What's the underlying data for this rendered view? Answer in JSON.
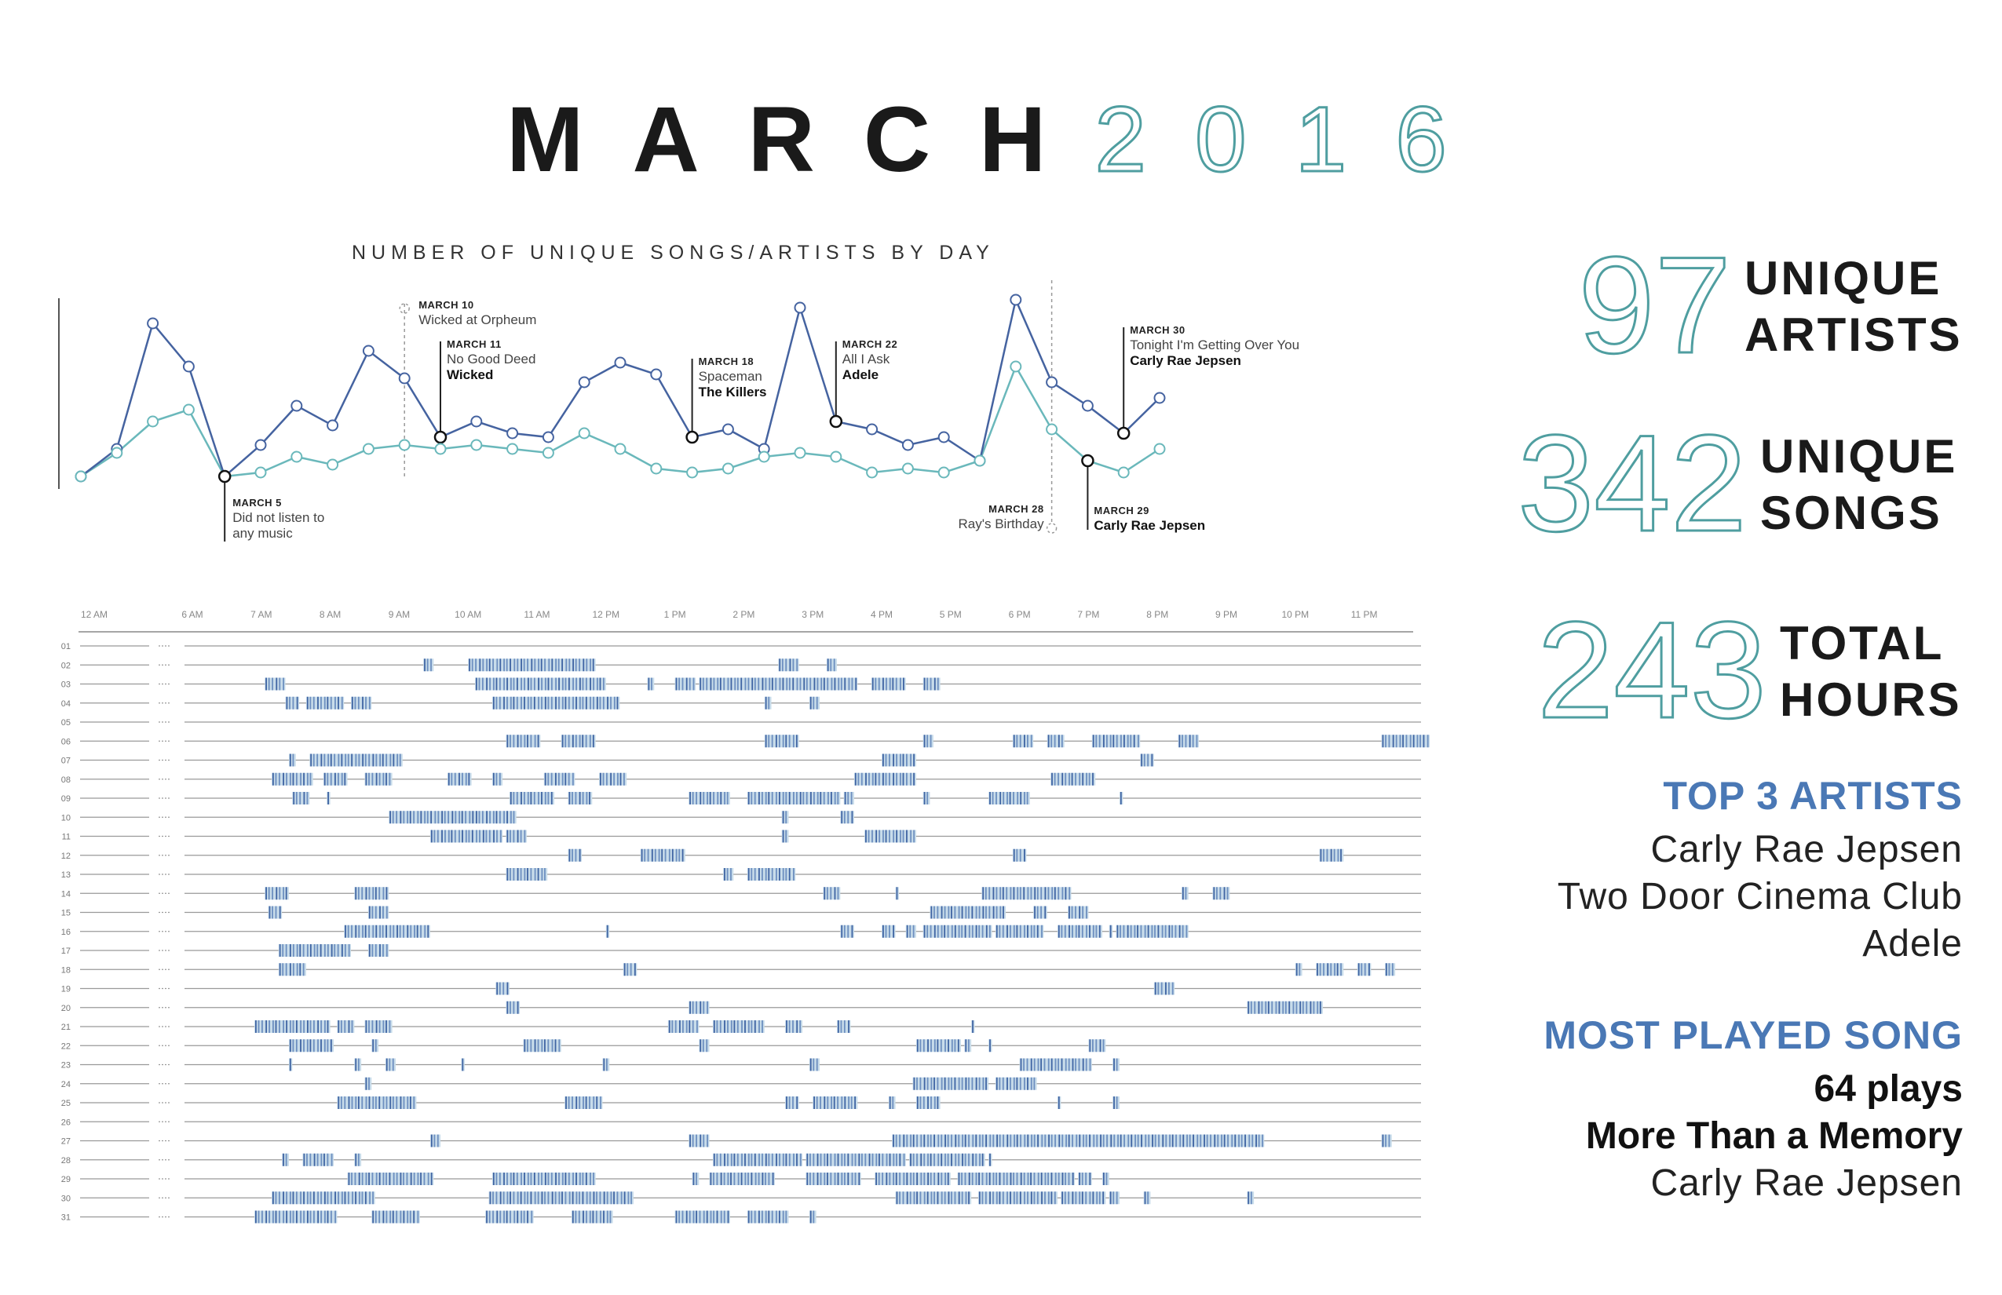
{
  "header": {
    "month": "MARCH",
    "year": "2016"
  },
  "chart_data": {
    "type": "line",
    "title": "NUMBER OF UNIQUE SONGS/ARTISTS BY DAY",
    "x": [
      1,
      2,
      3,
      4,
      5,
      6,
      7,
      8,
      9,
      10,
      11,
      12,
      13,
      14,
      15,
      16,
      17,
      18,
      19,
      20,
      21,
      22,
      23,
      24,
      25,
      26,
      27,
      28,
      29,
      30,
      31
    ],
    "series": [
      {
        "name": "",
        "color": "#4563a0",
        "values": [
          0,
          7,
          39,
          28,
          0,
          8,
          18,
          13,
          32,
          25,
          10,
          14,
          11,
          10,
          24,
          29,
          26,
          10,
          12,
          7,
          43,
          14,
          12,
          8,
          10,
          4,
          45,
          24,
          18,
          11,
          20
        ]
      },
      {
        "name": "",
        "color": "#6ab8bb",
        "values": [
          0,
          6,
          14,
          17,
          0,
          1,
          5,
          3,
          7,
          8,
          7,
          8,
          7,
          6,
          11,
          7,
          2,
          1,
          2,
          5,
          6,
          5,
          1,
          2,
          1,
          4,
          28,
          12,
          4,
          1,
          7
        ]
      }
    ],
    "annotations": [
      {
        "day": 5,
        "date": "MARCH 5",
        "lines": [
          "Did not listen to",
          "any music"
        ],
        "bold": ""
      },
      {
        "day": 10,
        "date": "MARCH 10",
        "lines": [
          "Wicked at Orpheum"
        ],
        "bold": ""
      },
      {
        "day": 11,
        "date": "MARCH 11",
        "lines": [
          "No Good Deed"
        ],
        "bold": "Wicked"
      },
      {
        "day": 18,
        "date": "MARCH 18",
        "lines": [
          "Spaceman"
        ],
        "bold": "The Killers"
      },
      {
        "day": 22,
        "date": "MARCH 22",
        "lines": [
          "All I Ask"
        ],
        "bold": "Adele"
      },
      {
        "day": 28,
        "date": "MARCH 28",
        "lines": [
          "Ray's Birthday"
        ],
        "bold": ""
      },
      {
        "day": 29,
        "date": "MARCH 29",
        "lines": [],
        "bold": "Carly Rae Jepsen"
      },
      {
        "day": 30,
        "date": "MARCH 30",
        "lines": [
          "Tonight I'm Getting Over You"
        ],
        "bold": "Carly Rae Jepsen"
      }
    ]
  },
  "timeline": {
    "hours": [
      "12 AM",
      "6 AM",
      "7 AM",
      "8 AM",
      "9 AM",
      "10 AM",
      "11 AM",
      "12 PM",
      "1 PM",
      "2 PM",
      "3 PM",
      "4 PM",
      "5 PM",
      "6 PM",
      "7 PM",
      "8 PM",
      "9 PM",
      "10 PM",
      "11 PM"
    ],
    "days": [
      "01",
      "02",
      "03",
      "04",
      "05",
      "06",
      "07",
      "08",
      "09",
      "10",
      "11",
      "12",
      "13",
      "14",
      "15",
      "16",
      "17",
      "18",
      "19",
      "20",
      "21",
      "22",
      "23",
      "24",
      "25",
      "26",
      "27",
      "28",
      "29",
      "30",
      "31"
    ],
    "sessions": [
      [],
      [
        [
          9.35,
          9.5
        ],
        [
          10.0,
          11.85
        ],
        [
          14.5,
          14.8
        ],
        [
          15.2,
          15.35
        ]
      ],
      [
        [
          7.05,
          7.35
        ],
        [
          10.1,
          12.0
        ],
        [
          12.6,
          12.7
        ],
        [
          13.0,
          13.3
        ],
        [
          13.35,
          15.65
        ],
        [
          15.85,
          16.35
        ],
        [
          16.6,
          16.85
        ]
      ],
      [
        [
          7.35,
          7.55
        ],
        [
          7.65,
          8.2
        ],
        [
          8.3,
          8.6
        ],
        [
          10.35,
          12.2
        ],
        [
          14.3,
          14.4
        ],
        [
          14.95,
          15.1
        ]
      ],
      [],
      [
        [
          10.55,
          11.05
        ],
        [
          11.35,
          11.85
        ],
        [
          14.3,
          14.8
        ],
        [
          16.6,
          16.75
        ],
        [
          17.9,
          18.2
        ],
        [
          18.4,
          18.65
        ],
        [
          19.05,
          19.75
        ],
        [
          20.3,
          20.6
        ],
        [
          23.25,
          23.95
        ]
      ],
      [
        [
          7.4,
          7.5
        ],
        [
          7.7,
          9.05
        ],
        [
          16.0,
          16.5
        ],
        [
          19.75,
          19.95
        ]
      ],
      [
        [
          7.15,
          7.75
        ],
        [
          7.9,
          8.25
        ],
        [
          8.5,
          8.9
        ],
        [
          9.7,
          10.05
        ],
        [
          10.35,
          10.5
        ],
        [
          11.1,
          11.55
        ],
        [
          11.9,
          12.3
        ],
        [
          15.6,
          16.0
        ],
        [
          16.0,
          16.5
        ],
        [
          18.45,
          19.1
        ]
      ],
      [
        [
          7.45,
          7.7
        ],
        [
          7.95,
          8.0
        ],
        [
          10.6,
          11.25
        ],
        [
          11.45,
          11.8
        ],
        [
          13.2,
          13.8
        ],
        [
          14.05,
          15.4
        ],
        [
          15.45,
          15.6
        ],
        [
          16.6,
          16.7
        ],
        [
          17.55,
          18.15
        ],
        [
          19.45,
          19.5
        ]
      ],
      [
        [
          8.85,
          10.1
        ],
        [
          10.1,
          10.7
        ],
        [
          14.55,
          14.65
        ],
        [
          15.4,
          15.6
        ]
      ],
      [
        [
          9.45,
          10.5
        ],
        [
          10.55,
          10.85
        ],
        [
          14.55,
          14.65
        ],
        [
          15.75,
          16.5
        ]
      ],
      [
        [
          11.45,
          11.65
        ],
        [
          12.5,
          13.15
        ],
        [
          17.9,
          18.1
        ],
        [
          22.35,
          22.7
        ]
      ],
      [
        [
          10.55,
          11.15
        ],
        [
          13.7,
          13.85
        ],
        [
          14.05,
          14.75
        ]
      ],
      [
        [
          7.05,
          7.4
        ],
        [
          8.35,
          8.85
        ],
        [
          15.15,
          15.4
        ],
        [
          16.2,
          16.25
        ],
        [
          17.45,
          18.75
        ],
        [
          20.35,
          20.45
        ],
        [
          20.8,
          21.05
        ]
      ],
      [
        [
          7.1,
          7.3
        ],
        [
          8.55,
          8.85
        ],
        [
          16.7,
          17.8
        ],
        [
          18.2,
          18.4
        ],
        [
          18.7,
          19.0
        ]
      ],
      [
        [
          8.2,
          9.45
        ],
        [
          12.0,
          12.05
        ],
        [
          15.4,
          15.6
        ],
        [
          16.0,
          16.2
        ],
        [
          16.35,
          16.5
        ],
        [
          16.6,
          17.6
        ],
        [
          17.65,
          18.35
        ],
        [
          18.55,
          19.2
        ],
        [
          19.3,
          19.35
        ],
        [
          19.4,
          20.45
        ]
      ],
      [
        [
          7.25,
          8.3
        ],
        [
          8.55,
          8.85
        ]
      ],
      [
        [
          7.25,
          7.65
        ],
        [
          12.25,
          12.45
        ],
        [
          22.0,
          22.1
        ],
        [
          22.3,
          22.7
        ],
        [
          22.9,
          23.1
        ],
        [
          23.3,
          23.45
        ]
      ],
      [
        [
          10.4,
          10.6
        ],
        [
          19.95,
          20.25
        ]
      ],
      [
        [
          10.55,
          10.75
        ],
        [
          13.2,
          13.5
        ],
        [
          21.3,
          22.4
        ]
      ],
      [
        [
          6.9,
          8.0
        ],
        [
          8.1,
          8.35
        ],
        [
          8.5,
          8.9
        ],
        [
          12.9,
          13.35
        ],
        [
          13.55,
          14.3
        ],
        [
          14.6,
          14.85
        ],
        [
          15.35,
          15.55
        ],
        [
          17.3,
          17.35
        ]
      ],
      [
        [
          7.4,
          8.05
        ],
        [
          8.6,
          8.7
        ],
        [
          10.8,
          11.35
        ],
        [
          13.35,
          13.5
        ],
        [
          16.5,
          17.15
        ],
        [
          17.2,
          17.3
        ],
        [
          17.55,
          17.6
        ],
        [
          19.0,
          19.25
        ]
      ],
      [
        [
          7.4,
          7.45
        ],
        [
          8.35,
          8.45
        ],
        [
          8.8,
          8.95
        ],
        [
          9.9,
          9.95
        ],
        [
          11.95,
          12.05
        ],
        [
          14.95,
          15.1
        ],
        [
          18.0,
          19.05
        ],
        [
          19.35,
          19.45
        ]
      ],
      [
        [
          8.5,
          8.6
        ],
        [
          16.45,
          17.55
        ],
        [
          17.65,
          18.25
        ]
      ],
      [
        [
          8.1,
          9.25
        ],
        [
          11.4,
          11.95
        ],
        [
          14.6,
          14.8
        ],
        [
          15.0,
          15.65
        ],
        [
          16.1,
          16.2
        ],
        [
          16.5,
          16.85
        ],
        [
          18.55,
          18.6
        ],
        [
          19.35,
          19.45
        ]
      ],
      [],
      [
        [
          9.45,
          9.6
        ],
        [
          13.2,
          13.5
        ],
        [
          16.15,
          21.55
        ],
        [
          23.25,
          23.4
        ]
      ],
      [
        [
          7.3,
          7.4
        ],
        [
          7.6,
          8.05
        ],
        [
          8.35,
          8.45
        ],
        [
          13.55,
          14.85
        ],
        [
          14.9,
          16.35
        ],
        [
          16.4,
          17.5
        ],
        [
          17.55,
          17.6
        ]
      ],
      [
        [
          8.25,
          9.5
        ],
        [
          10.35,
          11.85
        ],
        [
          13.25,
          13.35
        ],
        [
          13.5,
          14.45
        ],
        [
          14.9,
          15.7
        ],
        [
          15.9,
          17.0
        ],
        [
          17.1,
          18.8
        ],
        [
          18.85,
          19.05
        ],
        [
          19.2,
          19.3
        ]
      ],
      [
        [
          7.15,
          8.65
        ],
        [
          10.3,
          12.4
        ],
        [
          16.2,
          17.3
        ],
        [
          17.4,
          18.55
        ],
        [
          18.6,
          19.25
        ],
        [
          19.3,
          19.45
        ],
        [
          19.8,
          19.9
        ],
        [
          21.3,
          21.4
        ]
      ],
      [
        [
          6.9,
          8.1
        ],
        [
          8.6,
          9.3
        ],
        [
          10.25,
          10.95
        ],
        [
          11.5,
          12.1
        ],
        [
          13.0,
          13.8
        ],
        [
          14.05,
          14.65
        ],
        [
          14.95,
          15.05
        ]
      ]
    ]
  },
  "stats": [
    {
      "number": "97",
      "label_1": "UNIQUE",
      "label_2": "ARTISTS"
    },
    {
      "number": "342",
      "label_1": "UNIQUE",
      "label_2": "SONGS"
    },
    {
      "number": "243",
      "label_1": "TOTAL",
      "label_2": "HOURS"
    }
  ],
  "top_artists": {
    "heading": "TOP 3 ARTISTS",
    "items": [
      "Carly Rae Jepsen",
      "Two Door Cinema Club",
      "Adele"
    ]
  },
  "most_played": {
    "heading": "MOST PLAYED SONG",
    "plays": "64 plays",
    "song": "More Than a Memory",
    "artist": "Carly Rae Jepsen"
  }
}
